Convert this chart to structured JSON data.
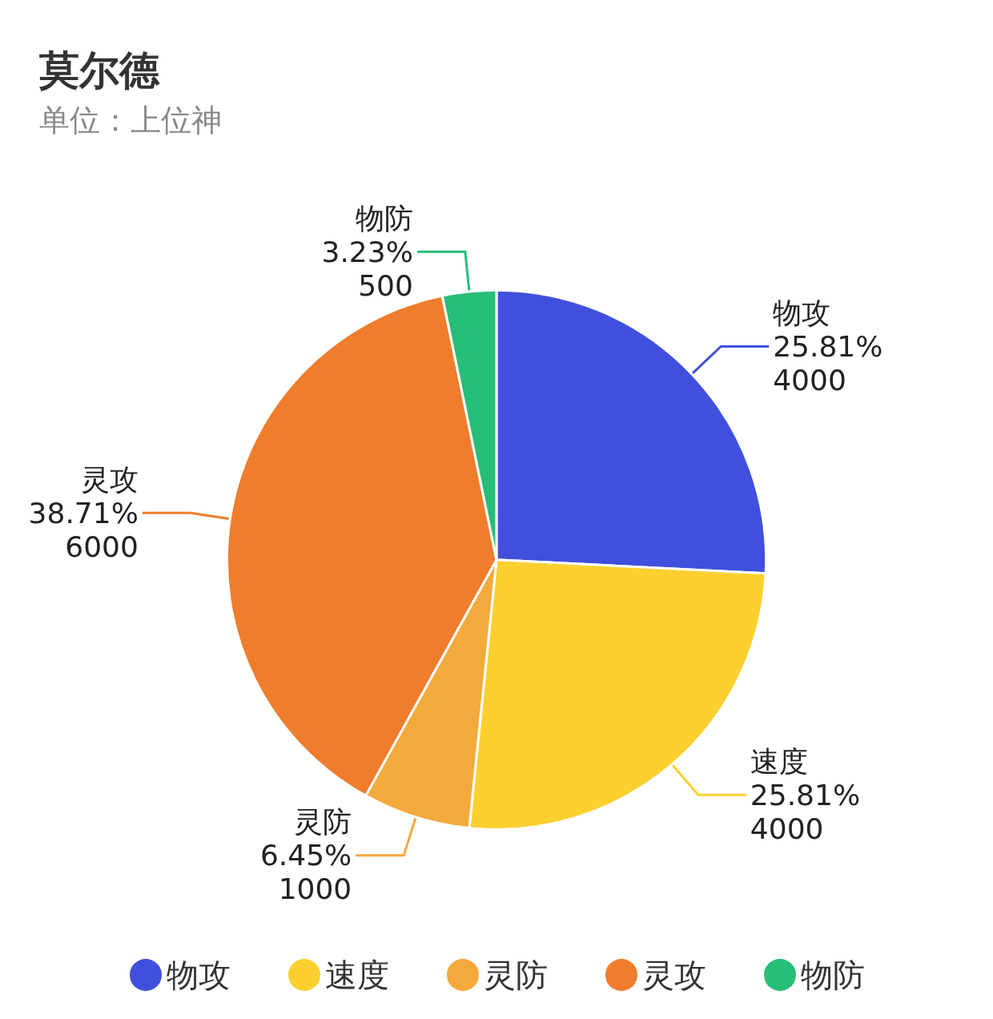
{
  "chart_data": {
    "type": "pie",
    "title": "莫尔德",
    "subtitle": "单位：上位神",
    "categories": [
      "物攻",
      "速度",
      "灵防",
      "灵攻",
      "物防"
    ],
    "values": [
      4000,
      4000,
      1000,
      6000,
      500
    ],
    "value_labels": [
      "25.81%\n4000",
      "25.81%\n4000",
      "6.45%\n1000",
      "38.71%\n6000",
      "3.23%\n500"
    ],
    "colors": [
      "#4050dc",
      "#fdd030",
      "#f4a93c",
      "#ef7d2c",
      "#27be78"
    ],
    "data_labels": true,
    "legend": "bottom"
  }
}
